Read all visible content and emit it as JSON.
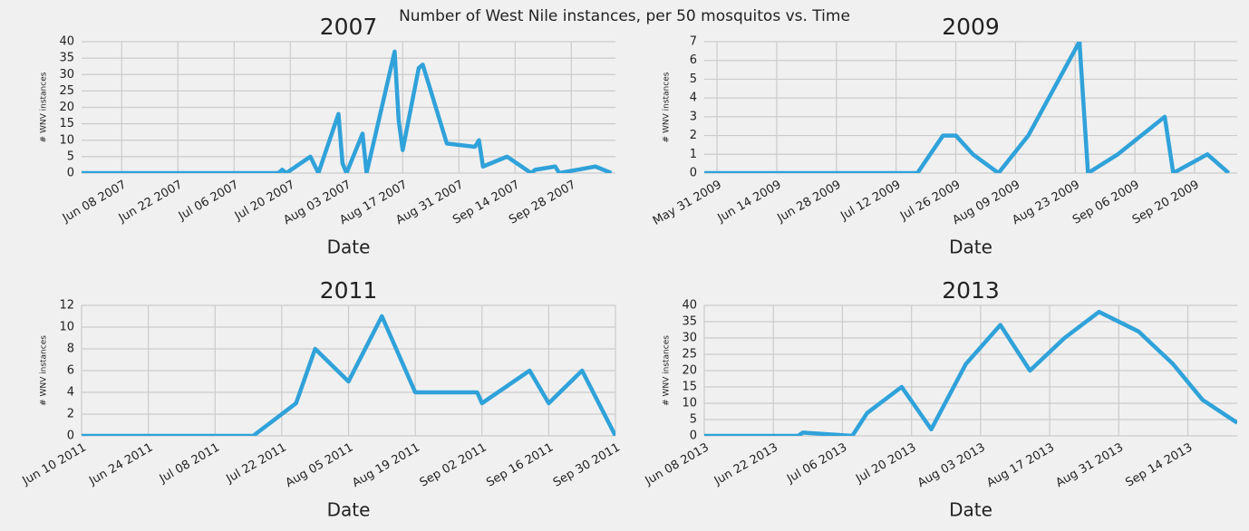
{
  "title": "Number of West Nile instances, per 50 mosquitos vs. Time",
  "chart_data": [
    {
      "type": "line",
      "title": "2007",
      "xlabel": "Date",
      "ylabel": "# WNV instances",
      "color": "#30a2da",
      "grid": true,
      "x": [
        "2007-05-29",
        "2007-07-17",
        "2007-07-18",
        "2007-07-19",
        "2007-07-25",
        "2007-07-27",
        "2007-08-01",
        "2007-08-02",
        "2007-08-03",
        "2007-08-07",
        "2007-08-08",
        "2007-08-15",
        "2007-08-16",
        "2007-08-17",
        "2007-08-21",
        "2007-08-22",
        "2007-08-28",
        "2007-09-04",
        "2007-09-05",
        "2007-09-06",
        "2007-09-12",
        "2007-09-18",
        "2007-09-19",
        "2007-09-24",
        "2007-09-25",
        "2007-10-04",
        "2007-10-08"
      ],
      "values": [
        0,
        0,
        1,
        0,
        5,
        0,
        18,
        3,
        0,
        12,
        0,
        37,
        16,
        7,
        32,
        33,
        9,
        8,
        10,
        2,
        5,
        0,
        1,
        2,
        0,
        2,
        0
      ],
      "xlim": [
        "2007-05-29",
        "2007-10-09"
      ],
      "xticks": [
        {
          "value": "2007-06-08",
          "label": "Jun 08 2007"
        },
        {
          "value": "2007-06-22",
          "label": "Jun 22 2007"
        },
        {
          "value": "2007-07-06",
          "label": "Jul 06 2007"
        },
        {
          "value": "2007-07-20",
          "label": "Jul 20 2007"
        },
        {
          "value": "2007-08-03",
          "label": "Aug 03 2007"
        },
        {
          "value": "2007-08-17",
          "label": "Aug 17 2007"
        },
        {
          "value": "2007-08-31",
          "label": "Aug 31 2007"
        },
        {
          "value": "2007-09-14",
          "label": "Sep 14 2007"
        },
        {
          "value": "2007-09-28",
          "label": "Sep 28 2007"
        }
      ],
      "ylim": [
        0,
        40
      ],
      "yticks": [
        0,
        5,
        10,
        15,
        20,
        25,
        30,
        35,
        40
      ]
    },
    {
      "type": "line",
      "title": "2009",
      "xlabel": "Date",
      "ylabel": "# WNV instances",
      "color": "#30a2da",
      "grid": true,
      "x": [
        "2009-05-28",
        "2009-07-17",
        "2009-07-23",
        "2009-07-26",
        "2009-07-30",
        "2009-08-05",
        "2009-08-12",
        "2009-08-24",
        "2009-08-26",
        "2009-09-02",
        "2009-09-13",
        "2009-09-15",
        "2009-09-23",
        "2009-09-28"
      ],
      "values": [
        0,
        0,
        2,
        2,
        1,
        0,
        2,
        7,
        0,
        1,
        3,
        0,
        1,
        0
      ],
      "xlim": [
        "2009-05-28",
        "2009-09-30"
      ],
      "xticks": [
        {
          "value": "2009-05-31",
          "label": "May 31 2009"
        },
        {
          "value": "2009-06-14",
          "label": "Jun 14 2009"
        },
        {
          "value": "2009-06-28",
          "label": "Jun 28 2009"
        },
        {
          "value": "2009-07-12",
          "label": "Jul 12 2009"
        },
        {
          "value": "2009-07-26",
          "label": "Jul 26 2009"
        },
        {
          "value": "2009-08-09",
          "label": "Aug 09 2009"
        },
        {
          "value": "2009-08-23",
          "label": "Aug 23 2009"
        },
        {
          "value": "2009-09-06",
          "label": "Sep 06 2009"
        },
        {
          "value": "2009-09-20",
          "label": "Sep 20 2009"
        }
      ],
      "ylim": [
        0,
        7
      ],
      "yticks": [
        0,
        1,
        2,
        3,
        4,
        5,
        6,
        7
      ]
    },
    {
      "type": "line",
      "title": "2011",
      "xlabel": "Date",
      "ylabel": "# WNV instances",
      "color": "#30a2da",
      "grid": true,
      "x": [
        "2011-06-10",
        "2011-07-16",
        "2011-07-25",
        "2011-07-29",
        "2011-08-05",
        "2011-08-12",
        "2011-08-19",
        "2011-09-01",
        "2011-09-02",
        "2011-09-12",
        "2011-09-16",
        "2011-09-23",
        "2011-09-30"
      ],
      "values": [
        0,
        0,
        3,
        8,
        5,
        11,
        4,
        4,
        3,
        6,
        3,
        6,
        0
      ],
      "xlim": [
        "2011-06-10",
        "2011-09-30"
      ],
      "xticks": [
        {
          "value": "2011-06-10",
          "label": "Jun 10 2011"
        },
        {
          "value": "2011-06-24",
          "label": "Jun 24 2011"
        },
        {
          "value": "2011-07-08",
          "label": "Jul 08 2011"
        },
        {
          "value": "2011-07-22",
          "label": "Jul 22 2011"
        },
        {
          "value": "2011-08-05",
          "label": "Aug 05 2011"
        },
        {
          "value": "2011-08-19",
          "label": "Aug 19 2011"
        },
        {
          "value": "2011-09-02",
          "label": "Sep 02 2011"
        },
        {
          "value": "2011-09-16",
          "label": "Sep 16 2011"
        },
        {
          "value": "2011-09-30",
          "label": "Sep 30 2011"
        }
      ],
      "ylim": [
        0,
        12
      ],
      "yticks": [
        0,
        2,
        4,
        6,
        8,
        10,
        12
      ]
    },
    {
      "type": "line",
      "title": "2013",
      "xlabel": "Date",
      "ylabel": "# WNV instances",
      "color": "#30a2da",
      "grid": true,
      "x": [
        "2013-06-08",
        "2013-06-27",
        "2013-06-28",
        "2013-07-08",
        "2013-07-11",
        "2013-07-18",
        "2013-07-24",
        "2013-07-31",
        "2013-08-07",
        "2013-08-13",
        "2013-08-20",
        "2013-08-27",
        "2013-09-04",
        "2013-09-11",
        "2013-09-17",
        "2013-09-24"
      ],
      "values": [
        0,
        0,
        1,
        0,
        7,
        15,
        2,
        22,
        34,
        20,
        30,
        38,
        32,
        22,
        11,
        4
      ],
      "xlim": [
        "2013-06-08",
        "2013-09-24"
      ],
      "xticks": [
        {
          "value": "2013-06-08",
          "label": "Jun 08 2013"
        },
        {
          "value": "2013-06-22",
          "label": "Jun 22 2013"
        },
        {
          "value": "2013-07-06",
          "label": "Jul 06 2013"
        },
        {
          "value": "2013-07-20",
          "label": "Jul 20 2013"
        },
        {
          "value": "2013-08-03",
          "label": "Aug 03 2013"
        },
        {
          "value": "2013-08-17",
          "label": "Aug 17 2013"
        },
        {
          "value": "2013-08-31",
          "label": "Aug 31 2013"
        },
        {
          "value": "2013-09-14",
          "label": "Sep 14 2013"
        }
      ],
      "ylim": [
        0,
        40
      ],
      "yticks": [
        0,
        5,
        10,
        15,
        20,
        25,
        30,
        35,
        40
      ]
    }
  ]
}
